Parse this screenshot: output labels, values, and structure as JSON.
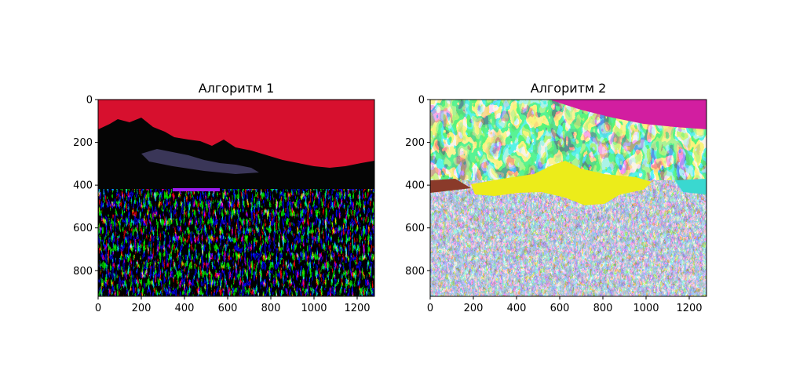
{
  "chart_data": [
    {
      "type": "heatmap",
      "title": "Алгоритм 1",
      "xlabel": "",
      "ylabel": "",
      "xlim": [
        0,
        1280
      ],
      "ylim": [
        920,
        0
      ],
      "x_ticks": [
        0,
        200,
        400,
        600,
        800,
        1000,
        1200
      ],
      "y_ticks": [
        0,
        200,
        400,
        600,
        800
      ],
      "grid": false,
      "image": "segmented landscape: red sky, black mountains and foreground with sparse colored segments",
      "dominant_colors": [
        "#d7102e",
        "#050505",
        "#3a3658"
      ]
    },
    {
      "type": "heatmap",
      "title": "Алгоритм 2",
      "xlabel": "",
      "ylabel": "",
      "xlim": [
        0,
        1280
      ],
      "ylim": [
        920,
        0
      ],
      "x_ticks": [
        0,
        200,
        400,
        600,
        800,
        1000,
        1200
      ],
      "y_ticks": [
        0,
        200,
        400,
        600,
        800
      ],
      "grid": false,
      "image": "segmented landscape: multicolor segments with magenta sky, yellow meadow, grey textured foreground",
      "dominant_colors": [
        "#d21ea0",
        "#ecec1a",
        "#7e7e8a",
        "#3ad8d0"
      ]
    }
  ]
}
